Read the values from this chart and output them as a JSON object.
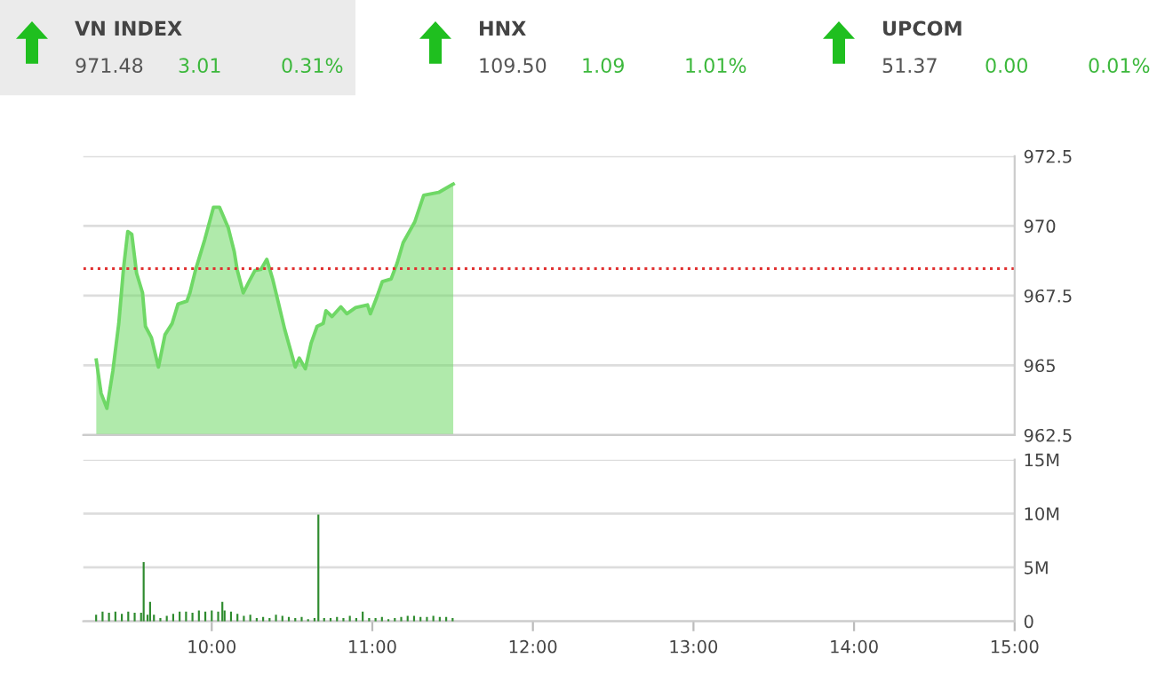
{
  "chart_data": [
    {
      "type": "other",
      "annotations": [
        "VN INDEX",
        "971.48",
        "3.01",
        "0.31%",
        "HNX",
        "109.50",
        "1.09",
        "1.01%",
        "UPCOM",
        "51.37",
        "0.00",
        "0.01%"
      ]
    },
    {
      "type": "area",
      "xlim": [
        9.2,
        15
      ],
      "ylim": [
        962.5,
        972.5
      ],
      "yticks": [
        962.5,
        965,
        967.5,
        970,
        972.5
      ],
      "grid": "y",
      "tick_labels": "y",
      "ref_lines": [
        {
          "axis": "y",
          "value": 968.47,
          "color": "#e03131",
          "line_style": "dotted"
        }
      ],
      "series": [
        {
          "color": "#6fd866",
          "x": [
            9.281,
            9.311,
            9.347,
            9.384,
            9.421,
            9.45,
            9.477,
            9.502,
            9.532,
            9.569,
            9.587,
            9.624,
            9.668,
            9.709,
            9.753,
            9.79,
            9.845,
            9.864,
            9.9,
            9.956,
            10.011,
            10.048,
            10.103,
            10.14,
            10.158,
            10.196,
            10.232,
            10.269,
            10.306,
            10.343,
            10.379,
            10.417,
            10.454,
            10.52,
            10.545,
            10.583,
            10.619,
            10.656,
            10.694,
            10.711,
            10.749,
            10.804,
            10.841,
            10.896,
            10.97,
            10.988,
            11.025,
            11.062,
            11.117,
            11.154,
            11.192,
            11.264,
            11.32,
            11.413,
            11.504
          ],
          "values": [
            965.19,
            964.0,
            963.46,
            964.8,
            966.5,
            968.44,
            969.8,
            969.7,
            968.3,
            967.6,
            966.4,
            966.0,
            964.94,
            966.1,
            966.5,
            967.2,
            967.3,
            967.6,
            968.44,
            969.5,
            970.67,
            970.67,
            969.93,
            969.08,
            968.44,
            967.6,
            968.0,
            968.4,
            968.44,
            968.8,
            968.1,
            967.2,
            966.3,
            964.94,
            965.26,
            964.88,
            965.8,
            966.4,
            966.5,
            966.96,
            966.75,
            967.1,
            966.85,
            967.07,
            967.17,
            966.85,
            967.4,
            968.0,
            968.1,
            968.66,
            969.4,
            970.14,
            971.1,
            971.2,
            971.5
          ]
        }
      ]
    },
    {
      "type": "bar",
      "xlim": [
        9.2,
        15
      ],
      "ylim": [
        0,
        15
      ],
      "grid": "y",
      "yticks": [
        0,
        {
          "value": 5,
          "label": "5M"
        },
        {
          "value": 10,
          "label": "10M"
        },
        {
          "value": 15,
          "label": "15M"
        }
      ],
      "xticks": [
        {
          "value": 10,
          "label": "10:00"
        },
        {
          "value": 11,
          "label": "11:00"
        },
        {
          "value": 12,
          "label": "12:00"
        },
        {
          "value": 13,
          "label": "13:00"
        },
        {
          "value": 14,
          "label": "14:00"
        },
        {
          "value": 15,
          "label": "15:00"
        }
      ],
      "series": [
        {
          "color": "#2e8b2e",
          "x": [
            9.28,
            9.32,
            9.36,
            9.4,
            9.44,
            9.48,
            9.52,
            9.56,
            9.576,
            9.6,
            9.616,
            9.64,
            9.68,
            9.72,
            9.76,
            9.8,
            9.84,
            9.88,
            9.92,
            9.96,
            10.0,
            10.04,
            10.066,
            10.08,
            10.12,
            10.16,
            10.2,
            10.24,
            10.28,
            10.32,
            10.36,
            10.4,
            10.44,
            10.48,
            10.52,
            10.56,
            10.6,
            10.64,
            10.664,
            10.7,
            10.74,
            10.78,
            10.82,
            10.86,
            10.9,
            10.94,
            10.98,
            11.02,
            11.06,
            11.1,
            11.14,
            11.18,
            11.22,
            11.26,
            11.3,
            11.34,
            11.38,
            11.42,
            11.46,
            11.5
          ],
          "values": [
            0.6,
            0.9,
            0.8,
            0.9,
            0.7,
            0.9,
            0.8,
            0.8,
            5.5,
            0.6,
            1.8,
            0.6,
            0.3,
            0.5,
            0.7,
            0.9,
            0.9,
            0.8,
            1.0,
            0.9,
            1.0,
            0.9,
            1.8,
            1.0,
            0.9,
            0.7,
            0.5,
            0.6,
            0.3,
            0.4,
            0.3,
            0.6,
            0.5,
            0.4,
            0.3,
            0.4,
            0.2,
            0.3,
            9.9,
            0.3,
            0.3,
            0.4,
            0.3,
            0.5,
            0.3,
            0.9,
            0.3,
            0.3,
            0.4,
            0.2,
            0.3,
            0.4,
            0.5,
            0.5,
            0.4,
            0.4,
            0.5,
            0.4,
            0.4,
            0.3
          ]
        }
      ]
    }
  ]
}
